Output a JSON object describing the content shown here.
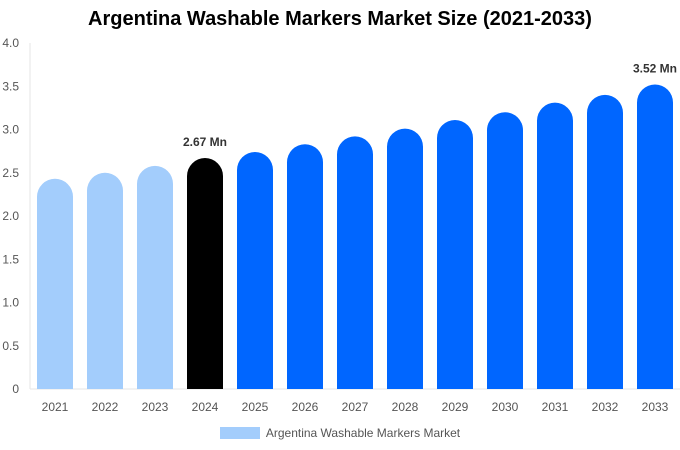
{
  "chart_data": {
    "type": "bar",
    "title": "Argentina Washable Markers Market Size (2021-2033)",
    "categories": [
      "2021",
      "2022",
      "2023",
      "2024",
      "2025",
      "2026",
      "2027",
      "2028",
      "2029",
      "2030",
      "2031",
      "2032",
      "2033"
    ],
    "series": [
      {
        "name": "Argentina Washable Markers Market",
        "values": [
          2.43,
          2.5,
          2.58,
          2.67,
          2.74,
          2.83,
          2.92,
          3.01,
          3.11,
          3.2,
          3.31,
          3.4,
          3.52
        ]
      }
    ],
    "bar_colors": [
      "#a3cdfc",
      "#a3cdfc",
      "#a3cdfc",
      "#000000",
      "#0066ff",
      "#0066ff",
      "#0066ff",
      "#0066ff",
      "#0066ff",
      "#0066ff",
      "#0066ff",
      "#0066ff",
      "#0066ff"
    ],
    "data_labels": [
      {
        "index": 3,
        "text": "2.67 Mn"
      },
      {
        "index": 12,
        "text": "3.52 Mn"
      }
    ],
    "yticks": [
      "0",
      "0.5",
      "1.0",
      "1.5",
      "2.0",
      "2.5",
      "3.0",
      "3.5",
      "4.0"
    ],
    "ylim": [
      0,
      4.0
    ],
    "xlabel": "",
    "ylabel": "",
    "grid": false,
    "legend_placement": "bottom",
    "legend_color": "#a3cdfc"
  }
}
